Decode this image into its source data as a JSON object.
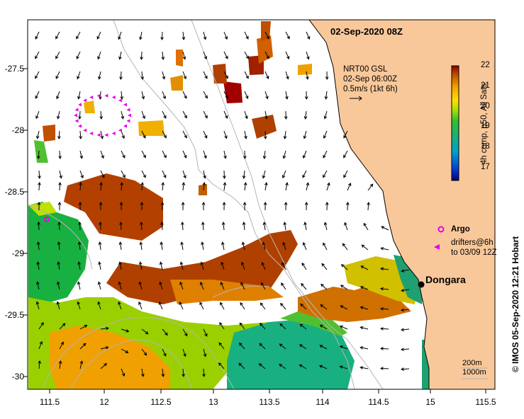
{
  "title": "02-Sep-2020 08Z",
  "legend": {
    "line1": "NRT00 GSL",
    "line2": "02-Sep 06:00Z",
    "line3": "0.5m/s (1kt 6h)"
  },
  "colorbar": {
    "label": "4h comp, p50, All Sats",
    "ticks": [
      "22",
      "21",
      "20",
      "19",
      "18",
      "17"
    ],
    "min": 16.5,
    "max": 22
  },
  "argo_label": "Argo",
  "drifters_line1": "drifters@6h",
  "drifters_line2": "to 03/09 12Z",
  "town": "Dongara",
  "depth_line1": "200m",
  "depth_line2": "1000m",
  "credit": "© IMOS 05-Sep-2020 12:21 Hobart",
  "axes": {
    "x_ticks": [
      "111.5",
      "12",
      "112.5",
      "13",
      "113.5",
      "114",
      "114.5",
      "15",
      "115.5"
    ],
    "y_ticks": [
      "-27.5",
      "-28",
      "-28.5",
      "-29",
      "-29.5",
      "-30"
    ],
    "x_range": [
      111.3,
      115.6
    ],
    "y_range": [
      -27.1,
      -30.1
    ]
  },
  "colors": {
    "land": "#f9c89a",
    "isobath": "#b4b4b4",
    "drifter": "#e800e8",
    "argo": "#e800e8"
  }
}
